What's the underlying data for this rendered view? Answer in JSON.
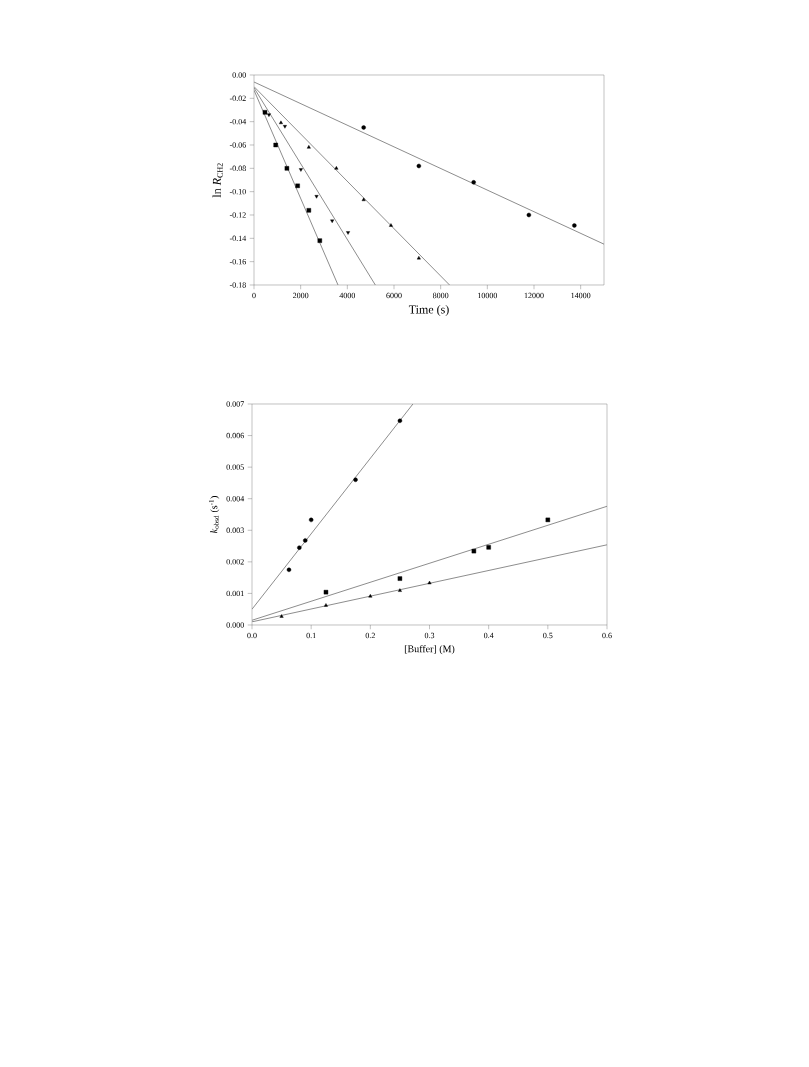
{
  "chart_data": [
    {
      "type": "scatter",
      "xlabel": "Time (s)",
      "ylabel": "ln *R*$_{CH2}$",
      "xlim": [
        0,
        15000
      ],
      "ylim": [
        -0.18,
        0.0
      ],
      "xticks": [
        0,
        2000,
        4000,
        6000,
        8000,
        10000,
        12000,
        14000
      ],
      "yticks": [
        {
          "value": 0.0,
          "label": "0.00"
        },
        {
          "value": -0.02,
          "label": "-0.02"
        },
        {
          "value": -0.04,
          "label": "-0.04"
        },
        {
          "value": -0.06,
          "label": "-0.06"
        },
        {
          "value": -0.08,
          "label": "-0.08"
        },
        {
          "value": -0.1,
          "label": "-0.10"
        },
        {
          "value": -0.12,
          "label": "-0.12"
        },
        {
          "value": -0.14,
          "label": "-0.14"
        },
        {
          "value": -0.16,
          "label": "-0.16"
        },
        {
          "value": -0.18,
          "label": "-0.18"
        }
      ],
      "series": [
        {
          "marker": "square",
          "color": "#000000",
          "x": [
            470,
            930,
            1410,
            1870,
            2350,
            2820
          ],
          "values": [
            -0.032,
            -0.06,
            -0.08,
            -0.095,
            -0.116,
            -0.142
          ]
        },
        {
          "marker": "triangle down",
          "color": "#000000",
          "x": [
            640,
            1325,
            2010,
            2680,
            3350,
            4030
          ],
          "values": [
            -0.034,
            -0.044,
            -0.081,
            -0.104,
            -0.125,
            -0.135
          ]
        },
        {
          "marker": "triangle",
          "color": "#000000",
          "x": [
            1155,
            2350,
            3530,
            4700,
            5870,
            7065
          ],
          "values": [
            -0.041,
            -0.062,
            -0.08,
            -0.107,
            -0.129,
            -0.157
          ]
        },
        {
          "marker": "circle",
          "color": "#000000",
          "x": [
            4700,
            7065,
            9415,
            11780,
            13730
          ],
          "values": [
            -0.045,
            -0.078,
            -0.092,
            -0.12,
            -0.129
          ]
        },
        {
          "type": "line",
          "marker": "none",
          "color": "#808080",
          "x": [
            0,
            3600
          ],
          "values": [
            -0.013,
            -0.18
          ]
        },
        {
          "type": "line",
          "marker": "none",
          "color": "#808080",
          "x": [
            0,
            5200
          ],
          "values": [
            -0.011,
            -0.18
          ]
        },
        {
          "type": "line",
          "marker": "none",
          "color": "#808080",
          "x": [
            0,
            8380
          ],
          "values": [
            -0.01,
            -0.18
          ]
        },
        {
          "type": "line",
          "marker": "none",
          "color": "#808080",
          "x": [
            0,
            15000
          ],
          "values": [
            -0.006,
            -0.145
          ]
        }
      ]
    },
    {
      "type": "scatter",
      "xlabel": "[Buffer] (M)",
      "ylabel": "*k*$_{obsd}$ (s$^{-1}$)",
      "xlim": [
        0,
        0.6
      ],
      "ylim": [
        0,
        0.007
      ],
      "xticks": [
        {
          "value": 0,
          "label": "0.0"
        },
        {
          "value": 0.1,
          "label": "0.1"
        },
        {
          "value": 0.2,
          "label": "0.2"
        },
        {
          "value": 0.3,
          "label": "0.3"
        },
        {
          "value": 0.4,
          "label": "0.4"
        },
        {
          "value": 0.5,
          "label": "0.5"
        },
        {
          "value": 0.6,
          "label": "0.6"
        }
      ],
      "yticks": [
        {
          "value": 0,
          "label": "0.000"
        },
        {
          "value": 0.001,
          "label": "0.001"
        },
        {
          "value": 0.002,
          "label": "0.002"
        },
        {
          "value": 0.003,
          "label": "0.003"
        },
        {
          "value": 0.004,
          "label": "0.004"
        },
        {
          "value": 0.005,
          "label": "0.005"
        },
        {
          "value": 0.006,
          "label": "0.006"
        },
        {
          "value": 0.007,
          "label": "0.007"
        }
      ],
      "series": [
        {
          "marker": "circle",
          "color": "#000000",
          "x": [
            0.0625,
            0.08,
            0.09,
            0.1,
            0.175,
            0.25
          ],
          "values": [
            0.00175,
            0.00245,
            0.00268,
            0.00333,
            0.0046,
            0.00647
          ]
        },
        {
          "marker": "square",
          "color": "#000000",
          "x": [
            0.125,
            0.25,
            0.375,
            0.4,
            0.5
          ],
          "values": [
            0.00104,
            0.00147,
            0.00234,
            0.00246,
            0.00333
          ]
        },
        {
          "marker": "triangle",
          "color": "#000000",
          "x": [
            0.05,
            0.125,
            0.2,
            0.25,
            0.3
          ],
          "values": [
            0.00027,
            0.00062,
            0.00091,
            0.00109,
            0.00133
          ]
        },
        {
          "type": "line",
          "marker": "none",
          "color": "#808080",
          "x": [
            0,
            0.272
          ],
          "values": [
            0.0005,
            0.007
          ]
        },
        {
          "type": "line",
          "marker": "none",
          "color": "#808080",
          "x": [
            0,
            0.6
          ],
          "values": [
            0.00015,
            0.00376
          ]
        },
        {
          "type": "line",
          "marker": "none",
          "color": "#808080",
          "x": [
            0,
            0.6
          ],
          "values": [
            0.0001,
            0.00254
          ]
        }
      ]
    }
  ]
}
